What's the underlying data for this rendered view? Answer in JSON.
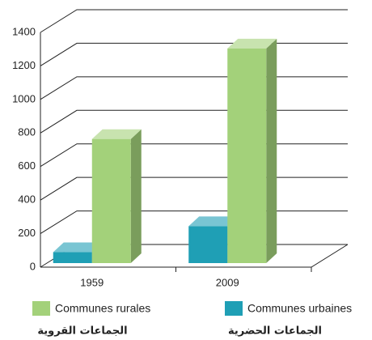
{
  "chart_data": {
    "type": "bar3d",
    "categories": [
      "1959",
      "2009"
    ],
    "series": [
      {
        "name": "Communes urbaines",
        "name_ar": "الجماعات الحضرية",
        "color": "#1f9fb5",
        "values": [
          65,
          220
        ]
      },
      {
        "name": "Communes rurales",
        "name_ar": "الجماعات القروية",
        "color": "#a3d17a",
        "values": [
          740,
          1280
        ]
      }
    ],
    "ylim": [
      0,
      1400
    ],
    "yticks": [
      0,
      200,
      400,
      600,
      800,
      1000,
      1200,
      1400
    ],
    "grid": true
  }
}
